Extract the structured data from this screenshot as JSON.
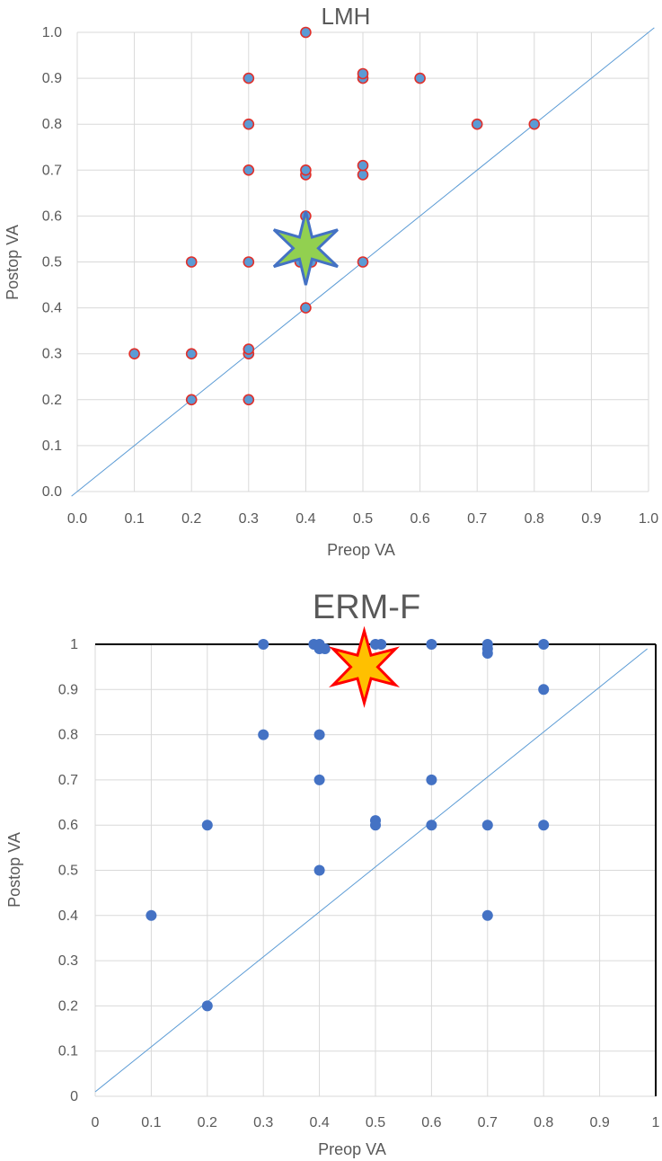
{
  "chart_data": [
    {
      "type": "scatter",
      "title": "LMH",
      "xlabel": "Preop VA",
      "ylabel": "Postop VA",
      "xlim": [
        0,
        1
      ],
      "ylim": [
        0,
        1
      ],
      "x_ticks": [
        "0.0",
        "0.1",
        "0.2",
        "0.3",
        "0.4",
        "0.5",
        "0.6",
        "0.7",
        "0.8",
        "0.9",
        "1.0"
      ],
      "y_ticks": [
        "0.0",
        "0.1",
        "0.2",
        "0.3",
        "0.4",
        "0.5",
        "0.6",
        "0.7",
        "0.8",
        "0.9",
        "1.0"
      ],
      "grid": true,
      "marker_fill": "#5b9bd5",
      "marker_edge": "#e0302b",
      "reference_line": {
        "x": [
          -0.01,
          1.01
        ],
        "y": [
          -0.01,
          1.01
        ],
        "color": "#5b9bd5"
      },
      "series": [
        {
          "name": "LMH",
          "points": [
            [
              0.1,
              0.3
            ],
            [
              0.2,
              0.2
            ],
            [
              0.2,
              0.3
            ],
            [
              0.2,
              0.5
            ],
            [
              0.3,
              0.2
            ],
            [
              0.3,
              0.3
            ],
            [
              0.3,
              0.31
            ],
            [
              0.3,
              0.5
            ],
            [
              0.3,
              0.7
            ],
            [
              0.3,
              0.8
            ],
            [
              0.3,
              0.9
            ],
            [
              0.4,
              0.4
            ],
            [
              0.39,
              0.5
            ],
            [
              0.41,
              0.5
            ],
            [
              0.4,
              0.6
            ],
            [
              0.4,
              0.69
            ],
            [
              0.4,
              0.7
            ],
            [
              0.4,
              1.0
            ],
            [
              0.5,
              0.5
            ],
            [
              0.5,
              0.69
            ],
            [
              0.5,
              0.71
            ],
            [
              0.5,
              0.9
            ],
            [
              0.5,
              0.91
            ],
            [
              0.6,
              0.9
            ],
            [
              0.7,
              0.8
            ],
            [
              0.8,
              0.8
            ]
          ]
        }
      ],
      "highlight": {
        "x": 0.4,
        "y": 0.53,
        "fill": "#92d050",
        "stroke": "#4472c4"
      }
    },
    {
      "type": "scatter",
      "title": "ERM-F",
      "xlabel": "Preop VA",
      "ylabel": "Postop VA",
      "xlim": [
        0,
        1
      ],
      "ylim": [
        0,
        1
      ],
      "x_ticks": [
        "0",
        "0.1",
        "0.2",
        "0.3",
        "0.4",
        "0.5",
        "0.6",
        "0.7",
        "0.8",
        "0.9",
        "1"
      ],
      "y_ticks": [
        "0",
        "0.1",
        "0.2",
        "0.3",
        "0.4",
        "0.5",
        "0.6",
        "0.7",
        "0.8",
        "0.9",
        "1"
      ],
      "grid": true,
      "marker_fill": "#4472c4",
      "reference_line": {
        "x": [
          0,
          0.985
        ],
        "y": [
          0.01,
          0.99
        ],
        "color": "#5b9bd5"
      },
      "series": [
        {
          "name": "ERM-F",
          "points": [
            [
              0.1,
              0.4
            ],
            [
              0.2,
              0.2
            ],
            [
              0.2,
              0.6
            ],
            [
              0.3,
              0.8
            ],
            [
              0.3,
              1.0
            ],
            [
              0.39,
              1.0
            ],
            [
              0.4,
              1.0
            ],
            [
              0.4,
              0.99
            ],
            [
              0.41,
              0.99
            ],
            [
              0.4,
              0.8
            ],
            [
              0.4,
              0.7
            ],
            [
              0.4,
              0.5
            ],
            [
              0.5,
              0.6
            ],
            [
              0.5,
              0.61
            ],
            [
              0.5,
              1.0
            ],
            [
              0.51,
              1.0
            ],
            [
              0.6,
              0.6
            ],
            [
              0.6,
              0.7
            ],
            [
              0.6,
              1.0
            ],
            [
              0.7,
              0.4
            ],
            [
              0.7,
              0.6
            ],
            [
              0.7,
              0.98
            ],
            [
              0.7,
              0.99
            ],
            [
              0.7,
              1.0
            ],
            [
              0.8,
              0.6
            ],
            [
              0.8,
              0.9
            ],
            [
              0.8,
              1.0
            ]
          ]
        }
      ],
      "highlight": {
        "x": 0.48,
        "y": 0.95,
        "fill": "#ffc000",
        "stroke": "#ff0000"
      }
    }
  ]
}
